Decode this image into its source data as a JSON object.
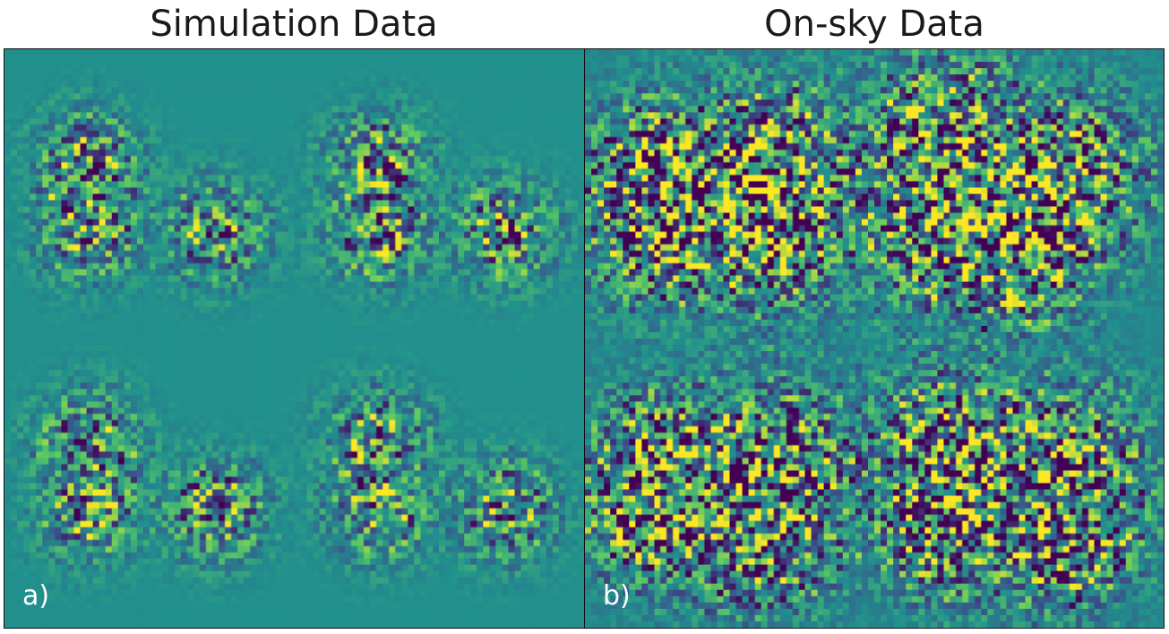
{
  "panels": [
    {
      "title": "Simulation Data",
      "label": "a)"
    },
    {
      "title": "On-sky Data",
      "label": "b)"
    }
  ],
  "colors": {
    "simulation_background": "#208f8c",
    "onsky_background": "#23878d",
    "colormap": "viridis",
    "label_text": "#ffffff"
  }
}
